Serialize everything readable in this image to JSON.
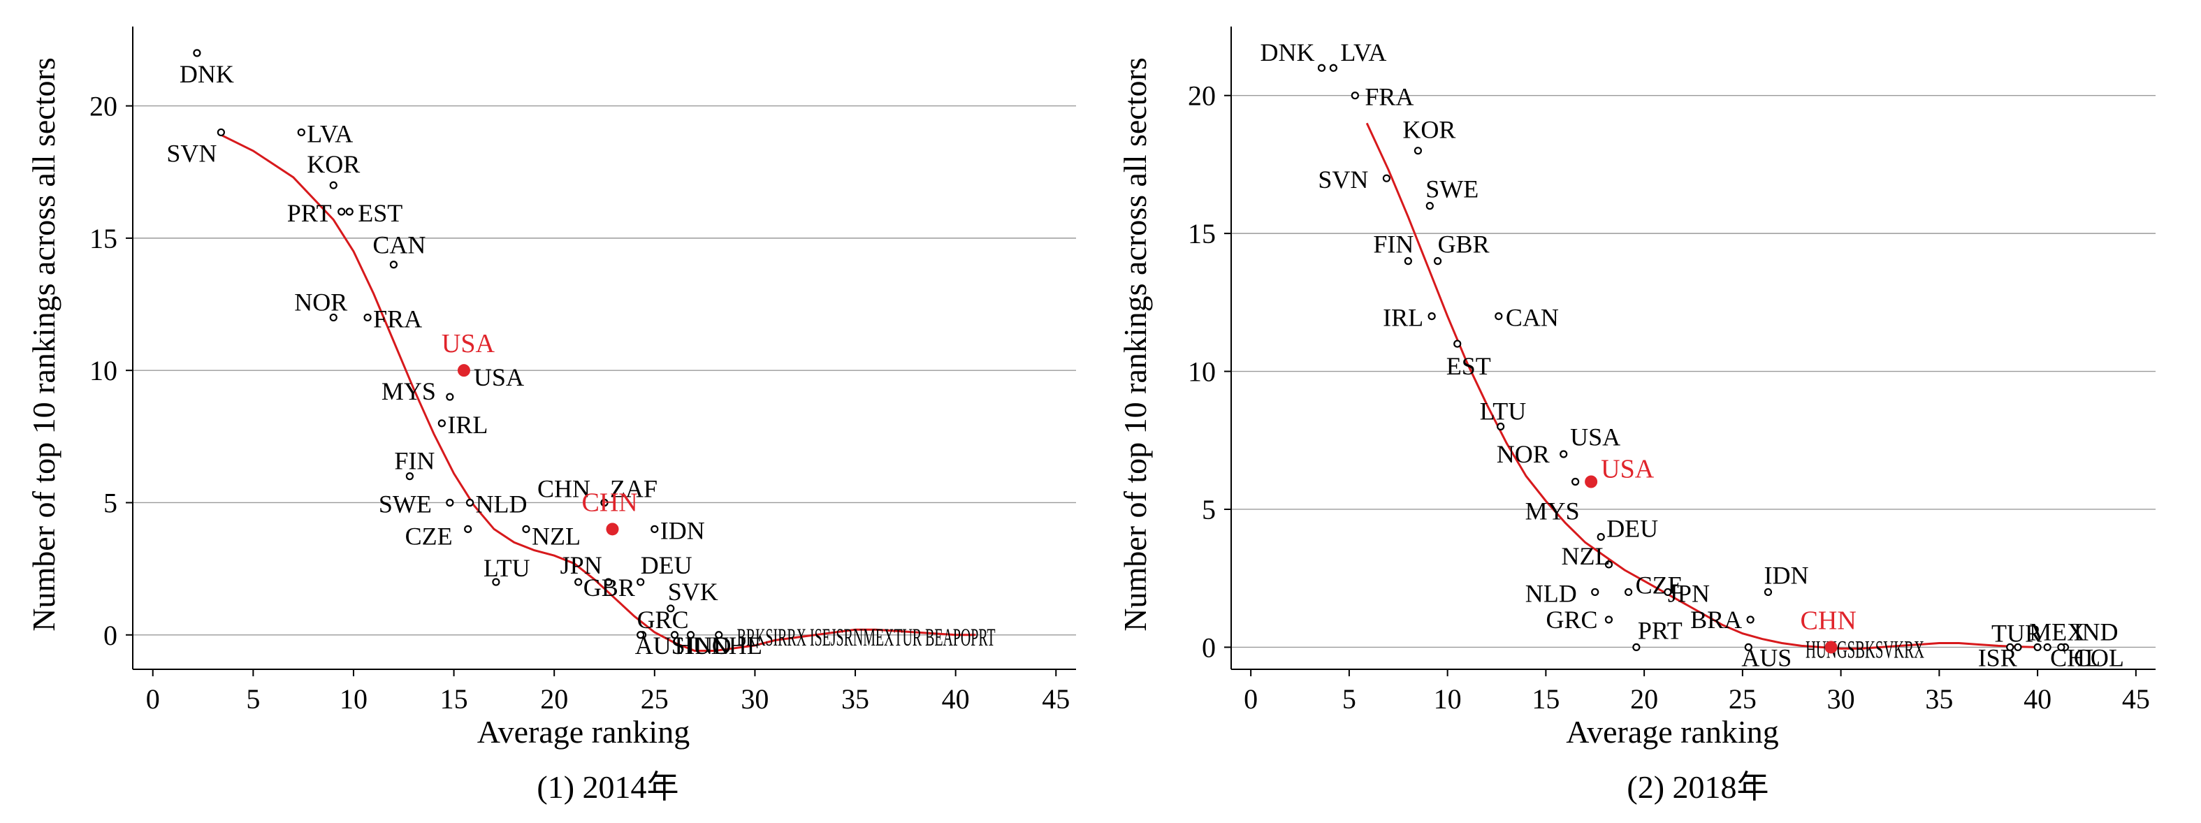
{
  "chart_data": [
    {
      "type": "scatter",
      "caption": "(1) 2014年",
      "xlabel": "Average ranking",
      "ylabel": "Number of top 10 rankings across all sectors",
      "xlim": [
        -1,
        46
      ],
      "ylim": [
        -1.3,
        23
      ],
      "xticks": [
        0,
        5,
        10,
        15,
        20,
        25,
        30,
        35,
        40,
        45
      ],
      "yticks": [
        0,
        5,
        10,
        15,
        20
      ],
      "grid": "horizontal",
      "point_color": "#000000",
      "highlight_color": "#e0242b",
      "trend_color": "#d7191c",
      "points": [
        {
          "label": "DNK",
          "x": 2.2,
          "y": 22
        },
        {
          "label": "SVN",
          "x": 3.4,
          "y": 19
        },
        {
          "label": "LVA",
          "x": 7.4,
          "y": 19
        },
        {
          "label": "KOR",
          "x": 9.0,
          "y": 17
        },
        {
          "label": "PRT",
          "x": 9.4,
          "y": 16
        },
        {
          "label": "EST",
          "x": 9.8,
          "y": 16
        },
        {
          "label": "CAN",
          "x": 12.0,
          "y": 14
        },
        {
          "label": "NOR",
          "x": 9.0,
          "y": 12
        },
        {
          "label": "FRA",
          "x": 10.7,
          "y": 12
        },
        {
          "label": "MYS",
          "x": 14.8,
          "y": 9
        },
        {
          "label": "IRL",
          "x": 14.4,
          "y": 8
        },
        {
          "label": "FIN",
          "x": 12.8,
          "y": 6
        },
        {
          "label": "SWE",
          "x": 14.8,
          "y": 5
        },
        {
          "label": "NLD",
          "x": 15.8,
          "y": 5
        },
        {
          "label": "CZE",
          "x": 15.7,
          "y": 4
        },
        {
          "label": "LTU",
          "x": 17.1,
          "y": 2
        },
        {
          "label": "NZL",
          "x": 18.6,
          "y": 4
        },
        {
          "label": "CHN",
          "x": 22.5,
          "y": 5
        },
        {
          "label": "ZAF",
          "x": 22.5,
          "y": 5
        },
        {
          "label": "IDN",
          "x": 25.0,
          "y": 4
        },
        {
          "label": "JPN",
          "x": 21.2,
          "y": 2
        },
        {
          "label": "GBR",
          "x": 22.7,
          "y": 2
        },
        {
          "label": "DEU",
          "x": 24.3,
          "y": 2
        },
        {
          "label": "SVK",
          "x": 25.8,
          "y": 1
        },
        {
          "label": "GRC",
          "x": 24.4,
          "y": 0
        },
        {
          "label": "AUS",
          "x": 24.3,
          "y": 0
        },
        {
          "label": "HUN",
          "x": 26.0,
          "y": 0
        },
        {
          "label": "IND",
          "x": 26.8,
          "y": 0
        },
        {
          "label": "CHE",
          "x": 28.2,
          "y": 0
        }
      ],
      "highlights": [
        {
          "label": "USA",
          "x": 15.5,
          "y": 10
        },
        {
          "label": "CHN",
          "x": 22.9,
          "y": 4
        }
      ],
      "dense_cluster_text": "BRKSIRRX ISEJSRNMEXTUR BEAPOPRT",
      "trend": {
        "x": [
          3.4,
          5,
          7,
          9,
          10,
          11,
          12,
          13,
          14,
          15,
          16,
          17,
          18,
          19,
          20,
          21,
          22,
          23,
          24,
          25,
          26,
          27,
          28,
          29,
          30,
          31,
          32,
          33,
          34,
          35,
          36,
          37,
          38,
          39,
          40,
          41
        ],
        "y": [
          18.9,
          18.3,
          17.3,
          15.7,
          14.5,
          12.9,
          11.1,
          9.3,
          7.6,
          6.1,
          4.9,
          4.0,
          3.5,
          3.2,
          3.0,
          2.7,
          2.1,
          1.4,
          0.7,
          0.1,
          -0.3,
          -0.6,
          -0.6,
          -0.5,
          -0.4,
          -0.2,
          -0.1,
          0.0,
          0.1,
          0.2,
          0.2,
          0.15,
          0.1,
          0.05,
          0.0,
          0.0
        ]
      }
    },
    {
      "type": "scatter",
      "caption": "(2) 2018年",
      "xlabel": "Average ranking",
      "ylabel": "Number of top 10 rankings across all sectors",
      "xlim": [
        -1,
        46
      ],
      "ylim": [
        -0.8,
        22.5
      ],
      "xticks": [
        0,
        5,
        10,
        15,
        20,
        25,
        30,
        35,
        40,
        45
      ],
      "yticks": [
        0,
        5,
        10,
        15,
        20
      ],
      "grid": "horizontal",
      "point_color": "#000000",
      "highlight_color": "#e0242b",
      "trend_color": "#d7191c",
      "points": [
        {
          "label": "DNK",
          "x": 3.6,
          "y": 21
        },
        {
          "label": "LVA",
          "x": 4.2,
          "y": 21
        },
        {
          "label": "FRA",
          "x": 5.3,
          "y": 20
        },
        {
          "label": "KOR",
          "x": 8.5,
          "y": 18
        },
        {
          "label": "SVN",
          "x": 6.9,
          "y": 17
        },
        {
          "label": "SWE",
          "x": 9.1,
          "y": 16
        },
        {
          "label": "FIN",
          "x": 8.0,
          "y": 14
        },
        {
          "label": "GBR",
          "x": 9.5,
          "y": 14
        },
        {
          "label": "IRL",
          "x": 9.2,
          "y": 12
        },
        {
          "label": "CAN",
          "x": 12.6,
          "y": 12
        },
        {
          "label": "EST",
          "x": 10.5,
          "y": 11
        },
        {
          "label": "LTU",
          "x": 12.7,
          "y": 8
        },
        {
          "label": "NOR",
          "x": 15.9,
          "y": 7
        },
        {
          "label": "MYS",
          "x": 16.5,
          "y": 6
        },
        {
          "label": "DEU",
          "x": 17.8,
          "y": 4
        },
        {
          "label": "NZL",
          "x": 18.2,
          "y": 3
        },
        {
          "label": "NLD",
          "x": 17.5,
          "y": 2
        },
        {
          "label": "CZE",
          "x": 19.2,
          "y": 2
        },
        {
          "label": "JPN",
          "x": 21.2,
          "y": 2
        },
        {
          "label": "IDN",
          "x": 26.3,
          "y": 2
        },
        {
          "label": "GRC",
          "x": 18.2,
          "y": 1
        },
        {
          "label": "BRA",
          "x": 25.4,
          "y": 1
        },
        {
          "label": "PRT",
          "x": 19.6,
          "y": 0
        },
        {
          "label": "AUS",
          "x": 25.3,
          "y": 0
        },
        {
          "label": "TUR",
          "x": 39.0,
          "y": 0
        },
        {
          "label": "ISR",
          "x": 38.6,
          "y": 0
        },
        {
          "label": "MEX",
          "x": 40.0,
          "y": 0
        },
        {
          "label": "IND",
          "x": 41.4,
          "y": 0
        },
        {
          "label": "CHL",
          "x": 40.5,
          "y": 0
        },
        {
          "label": "COL",
          "x": 41.2,
          "y": 0
        }
      ],
      "highlights": [
        {
          "label": "USA",
          "x": 17.3,
          "y": 6
        },
        {
          "label": "CHN",
          "x": 29.5,
          "y": 0
        }
      ],
      "annotations": [
        "USA"
      ],
      "dense_cluster_text": "HUNGSBKSVKRX",
      "trend": {
        "x": [
          5.9,
          7,
          8,
          9,
          10,
          11,
          12,
          13,
          14,
          15,
          16,
          17,
          18,
          19,
          20,
          21,
          22,
          23,
          24,
          25,
          26,
          27,
          28,
          29,
          30,
          31,
          32,
          33,
          34,
          35,
          36,
          37,
          38,
          39,
          40
        ],
        "y": [
          19.0,
          17.3,
          15.6,
          13.8,
          12.0,
          10.3,
          8.8,
          7.4,
          6.2,
          5.3,
          4.5,
          3.8,
          3.3,
          2.8,
          2.4,
          2.0,
          1.6,
          1.2,
          0.8,
          0.5,
          0.3,
          0.15,
          0.05,
          0.0,
          -0.05,
          -0.05,
          0.0,
          0.05,
          0.1,
          0.15,
          0.15,
          0.1,
          0.05,
          0.02,
          0.0
        ]
      }
    }
  ]
}
